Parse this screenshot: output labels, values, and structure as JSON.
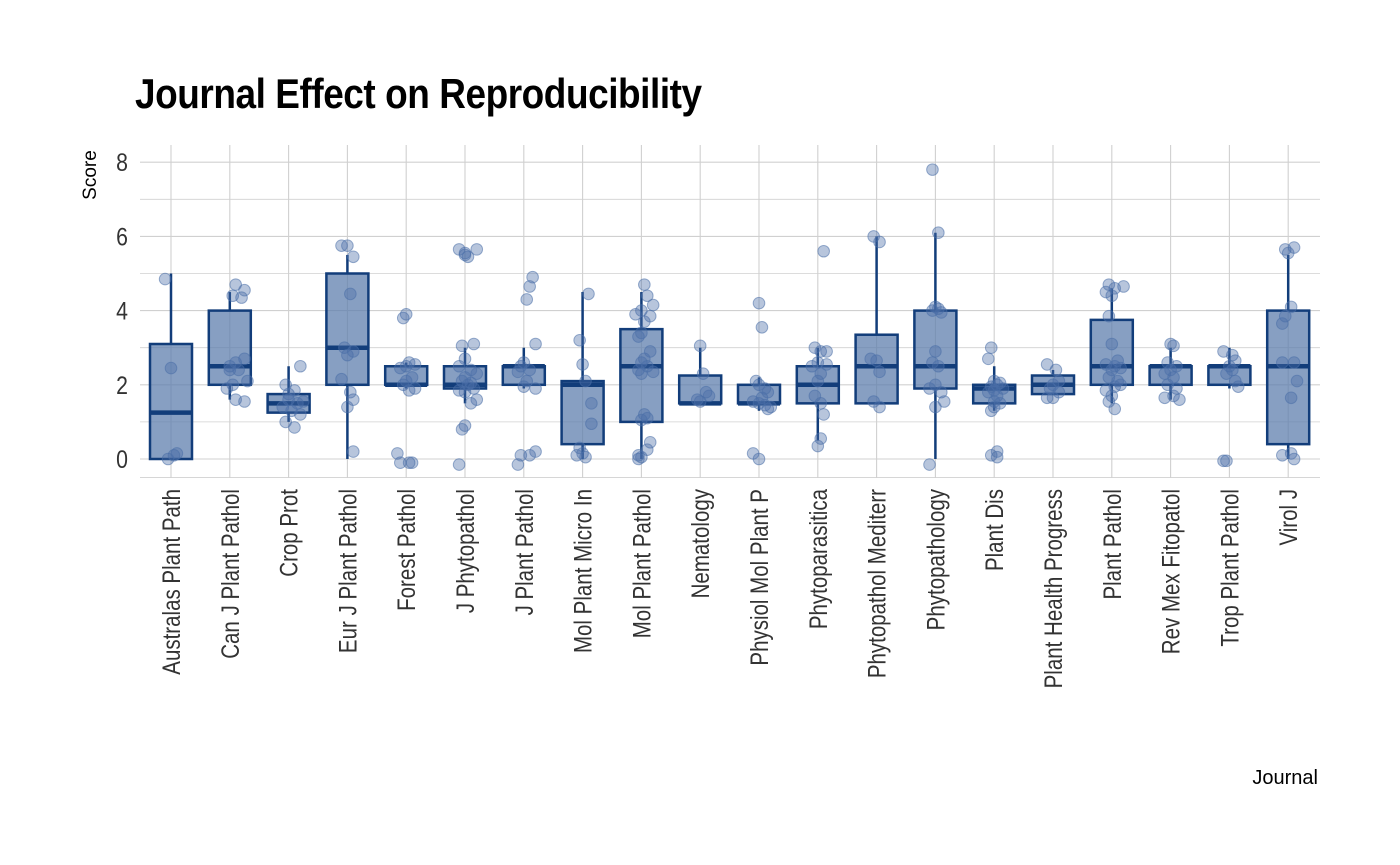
{
  "chart_data": {
    "type": "box",
    "title": "Journal Effect on Reproducibility",
    "xlabel": "Journal",
    "ylabel": "Score",
    "ylim": [
      -0.7,
      8.4
    ],
    "yticks": [
      0,
      2,
      4,
      6,
      8
    ],
    "grid": true,
    "colors": {
      "box_fill": "#5f7fae",
      "box_line": "#123d7a",
      "point": "#4a6fa8",
      "grid": "#d0d0d0"
    },
    "categories": [
      "Australas Plant Path",
      "Can J Plant Pathol",
      "Crop Prot",
      "Eur J Plant Pathol",
      "Forest Pathol",
      "J Phytopathol",
      "J Plant Pathol",
      "Mol Plant Micro In",
      "Mol Plant Pathol",
      "Nematology",
      "Physiol Mol Plant P",
      "Phytoparasitica",
      "Phytopathol Mediterr",
      "Phytopathology",
      "Plant Dis",
      "Plant Health Progress",
      "Plant Pathol",
      "Rev Mex Fitopatol",
      "Trop Plant Pathol",
      "Virol J"
    ],
    "boxes": [
      {
        "min": 0,
        "q1": 0,
        "median": 1.25,
        "q3": 3.1,
        "max": 5.0
      },
      {
        "min": 1.6,
        "q1": 2.0,
        "median": 2.5,
        "q3": 4.0,
        "max": 4.5
      },
      {
        "min": 1.0,
        "q1": 1.25,
        "median": 1.5,
        "q3": 1.75,
        "max": 2.5
      },
      {
        "min": 0,
        "q1": 2.0,
        "median": 3.0,
        "q3": 5.0,
        "max": 5.5
      },
      {
        "min": 1.9,
        "q1": 2.0,
        "median": 2.0,
        "q3": 2.5,
        "max": 2.6
      },
      {
        "min": 1.5,
        "q1": 1.9,
        "median": 2.0,
        "q3": 2.5,
        "max": 3.0
      },
      {
        "min": 1.9,
        "q1": 2.0,
        "median": 2.5,
        "q3": 2.5,
        "max": 3.0
      },
      {
        "min": 0,
        "q1": 0.4,
        "median": 2.0,
        "q3": 2.1,
        "max": 4.5
      },
      {
        "min": 0,
        "q1": 1.0,
        "median": 2.5,
        "q3": 3.5,
        "max": 4.5
      },
      {
        "min": 1.5,
        "q1": 1.5,
        "median": 1.5,
        "q3": 2.25,
        "max": 3.0
      },
      {
        "min": 1.3,
        "q1": 1.5,
        "median": 1.5,
        "q3": 2.0,
        "max": 2.2
      },
      {
        "min": 0.5,
        "q1": 1.5,
        "median": 2.0,
        "q3": 2.5,
        "max": 3.0
      },
      {
        "min": 1.5,
        "q1": 1.5,
        "median": 2.5,
        "q3": 3.35,
        "max": 6.0
      },
      {
        "min": 0,
        "q1": 1.9,
        "median": 2.5,
        "q3": 4.0,
        "max": 6.1
      },
      {
        "min": 1.3,
        "q1": 1.5,
        "median": 1.9,
        "q3": 2.0,
        "max": 2.5
      },
      {
        "min": 1.75,
        "q1": 1.75,
        "median": 2.0,
        "q3": 2.25,
        "max": 2.4
      },
      {
        "min": 1.5,
        "q1": 2.0,
        "median": 2.5,
        "q3": 3.75,
        "max": 4.6
      },
      {
        "min": 1.6,
        "q1": 2.0,
        "median": 2.5,
        "q3": 2.5,
        "max": 3.0
      },
      {
        "min": 1.9,
        "q1": 2.0,
        "median": 2.5,
        "q3": 2.5,
        "max": 3.0
      },
      {
        "min": 0,
        "q1": 0.4,
        "median": 2.5,
        "q3": 4.0,
        "max": 5.5
      }
    ],
    "points": [
      [
        [
          -0.1,
          4.85
        ],
        [
          0.0,
          2.45
        ],
        [
          0.05,
          0.1
        ],
        [
          0.1,
          0.15
        ],
        [
          -0.05,
          0.0
        ]
      ],
      [
        [
          0.1,
          4.7
        ],
        [
          0.25,
          4.55
        ],
        [
          0.05,
          4.4
        ],
        [
          0.2,
          4.35
        ],
        [
          0.0,
          2.5
        ],
        [
          0.25,
          2.7
        ],
        [
          0.1,
          2.6
        ],
        [
          0.15,
          2.4
        ],
        [
          0.05,
          2.0
        ],
        [
          -0.05,
          1.9
        ],
        [
          0.3,
          2.1
        ],
        [
          0.1,
          1.6
        ],
        [
          0.25,
          1.55
        ],
        [
          0.0,
          2.4
        ]
      ],
      [
        [
          0.2,
          2.5
        ],
        [
          -0.05,
          2.0
        ],
        [
          0.1,
          1.85
        ],
        [
          0.0,
          1.6
        ],
        [
          0.15,
          1.5
        ],
        [
          -0.1,
          1.4
        ],
        [
          0.05,
          1.3
        ],
        [
          0.2,
          1.2
        ],
        [
          -0.05,
          1.0
        ],
        [
          0.1,
          0.85
        ],
        [
          0.25,
          1.55
        ],
        [
          0.0,
          1.75
        ]
      ],
      [
        [
          -0.1,
          5.75
        ],
        [
          0.0,
          5.75
        ],
        [
          0.1,
          5.45
        ],
        [
          0.05,
          4.45
        ],
        [
          -0.05,
          3.0
        ],
        [
          0.1,
          2.9
        ],
        [
          0.0,
          2.8
        ],
        [
          -0.1,
          2.15
        ],
        [
          0.05,
          1.8
        ],
        [
          0.1,
          1.6
        ],
        [
          0.0,
          1.4
        ],
        [
          0.1,
          0.2
        ]
      ],
      [
        [
          -0.05,
          3.8
        ],
        [
          0.0,
          3.9
        ],
        [
          0.05,
          2.6
        ],
        [
          0.0,
          2.5
        ],
        [
          0.15,
          2.55
        ],
        [
          -0.1,
          2.45
        ],
        [
          0.1,
          2.2
        ],
        [
          0.0,
          2.1
        ],
        [
          -0.05,
          2.0
        ],
        [
          0.15,
          1.9
        ],
        [
          0.05,
          1.85
        ],
        [
          -0.15,
          0.15
        ],
        [
          -0.1,
          -0.1
        ],
        [
          0.05,
          -0.1
        ],
        [
          0.1,
          -0.1
        ]
      ],
      [
        [
          -0.1,
          5.65
        ],
        [
          0.0,
          5.5
        ],
        [
          0.05,
          5.45
        ],
        [
          0.2,
          5.65
        ],
        [
          0.0,
          5.55
        ],
        [
          0.15,
          3.1
        ],
        [
          -0.05,
          3.05
        ],
        [
          0.0,
          2.7
        ],
        [
          -0.1,
          2.5
        ],
        [
          0.1,
          2.4
        ],
        [
          0.2,
          2.3
        ],
        [
          0.0,
          2.2
        ],
        [
          -0.05,
          2.1
        ],
        [
          0.05,
          2.0
        ],
        [
          0.15,
          1.9
        ],
        [
          0.0,
          1.8
        ],
        [
          0.2,
          1.6
        ],
        [
          0.1,
          1.5
        ],
        [
          0.0,
          0.9
        ],
        [
          -0.05,
          0.8
        ],
        [
          -0.1,
          -0.15
        ],
        [
          -0.1,
          1.85
        ],
        [
          0.1,
          2.05
        ]
      ],
      [
        [
          0.15,
          4.9
        ],
        [
          0.1,
          4.65
        ],
        [
          0.05,
          4.3
        ],
        [
          0.2,
          3.1
        ],
        [
          0.0,
          2.6
        ],
        [
          -0.05,
          2.5
        ],
        [
          0.1,
          2.4
        ],
        [
          -0.1,
          2.35
        ],
        [
          0.05,
          2.1
        ],
        [
          0.0,
          1.95
        ],
        [
          0.2,
          1.9
        ],
        [
          0.2,
          0.2
        ],
        [
          0.1,
          0.1
        ],
        [
          -0.05,
          0.1
        ],
        [
          -0.1,
          -0.15
        ]
      ],
      [
        [
          0.1,
          4.45
        ],
        [
          -0.05,
          3.2
        ],
        [
          0.0,
          2.55
        ],
        [
          0.05,
          2.1
        ],
        [
          0.15,
          1.5
        ],
        [
          0.15,
          0.95
        ],
        [
          -0.05,
          0.3
        ],
        [
          0.0,
          0.15
        ],
        [
          -0.1,
          0.1
        ],
        [
          0.05,
          0.05
        ]
      ],
      [
        [
          0.05,
          4.7
        ],
        [
          0.1,
          4.4
        ],
        [
          0.2,
          4.15
        ],
        [
          0.0,
          4.0
        ],
        [
          -0.1,
          3.9
        ],
        [
          0.15,
          3.85
        ],
        [
          0.05,
          3.7
        ],
        [
          0.0,
          3.4
        ],
        [
          -0.05,
          3.3
        ],
        [
          0.15,
          2.9
        ],
        [
          0.05,
          2.7
        ],
        [
          0.0,
          2.6
        ],
        [
          0.1,
          2.5
        ],
        [
          -0.05,
          2.4
        ],
        [
          0.2,
          2.35
        ],
        [
          0.0,
          2.3
        ],
        [
          0.05,
          1.2
        ],
        [
          0.1,
          1.1
        ],
        [
          0.0,
          1.05
        ],
        [
          0.15,
          0.45
        ],
        [
          0.1,
          0.25
        ],
        [
          -0.05,
          0.1
        ],
        [
          0.0,
          0.05
        ],
        [
          -0.05,
          0.0
        ]
      ],
      [
        [
          0.0,
          3.05
        ],
        [
          0.05,
          2.3
        ],
        [
          0.1,
          1.8
        ],
        [
          0.15,
          1.7
        ],
        [
          -0.05,
          1.6
        ],
        [
          0.0,
          1.55
        ]
      ],
      [
        [
          0.0,
          4.2
        ],
        [
          0.05,
          3.55
        ],
        [
          -0.05,
          2.1
        ],
        [
          0.0,
          2.0
        ],
        [
          0.1,
          1.9
        ],
        [
          0.15,
          1.8
        ],
        [
          0.05,
          1.65
        ],
        [
          -0.1,
          1.55
        ],
        [
          0.1,
          1.45
        ],
        [
          0.2,
          1.4
        ],
        [
          0.15,
          1.35
        ],
        [
          0.0,
          1.5
        ],
        [
          -0.1,
          0.15
        ],
        [
          0.0,
          0.0
        ]
      ],
      [
        [
          0.1,
          5.6
        ],
        [
          -0.05,
          3.0
        ],
        [
          0.05,
          2.9
        ],
        [
          0.15,
          2.9
        ],
        [
          0.0,
          2.6
        ],
        [
          0.15,
          2.55
        ],
        [
          -0.1,
          2.5
        ],
        [
          0.05,
          2.3
        ],
        [
          0.0,
          2.1
        ],
        [
          -0.05,
          1.7
        ],
        [
          0.05,
          1.5
        ],
        [
          0.1,
          1.2
        ],
        [
          0.05,
          0.55
        ],
        [
          0.0,
          0.35
        ]
      ],
      [
        [
          -0.05,
          6.0
        ],
        [
          0.05,
          5.85
        ],
        [
          -0.1,
          2.7
        ],
        [
          0.0,
          2.65
        ],
        [
          0.05,
          2.35
        ],
        [
          -0.05,
          1.55
        ],
        [
          0.05,
          1.4
        ]
      ],
      [
        [
          -0.05,
          7.8
        ],
        [
          0.05,
          6.1
        ],
        [
          0.0,
          4.1
        ],
        [
          0.05,
          4.05
        ],
        [
          -0.05,
          4.0
        ],
        [
          0.1,
          3.95
        ],
        [
          0.0,
          2.9
        ],
        [
          -0.05,
          2.6
        ],
        [
          0.05,
          2.5
        ],
        [
          0.0,
          2.0
        ],
        [
          -0.1,
          1.9
        ],
        [
          0.1,
          1.8
        ],
        [
          0.15,
          1.55
        ],
        [
          0.0,
          1.4
        ],
        [
          -0.1,
          -0.15
        ]
      ],
      [
        [
          -0.05,
          3.0
        ],
        [
          -0.1,
          2.7
        ],
        [
          0.0,
          2.1
        ],
        [
          0.1,
          2.05
        ],
        [
          0.05,
          2.0
        ],
        [
          -0.05,
          1.95
        ],
        [
          0.15,
          1.9
        ],
        [
          0.0,
          1.85
        ],
        [
          -0.1,
          1.8
        ],
        [
          0.05,
          1.7
        ],
        [
          0.0,
          1.55
        ],
        [
          0.1,
          1.5
        ],
        [
          0.0,
          1.4
        ],
        [
          -0.05,
          1.3
        ],
        [
          0.05,
          0.2
        ],
        [
          -0.05,
          0.1
        ],
        [
          0.05,
          0.05
        ]
      ],
      [
        [
          -0.1,
          2.55
        ],
        [
          0.05,
          2.4
        ],
        [
          0.1,
          2.1
        ],
        [
          0.0,
          2.0
        ],
        [
          -0.05,
          1.9
        ],
        [
          0.1,
          1.8
        ],
        [
          -0.1,
          1.65
        ],
        [
          0.0,
          1.65
        ]
      ],
      [
        [
          -0.05,
          4.7
        ],
        [
          0.05,
          4.6
        ],
        [
          0.2,
          4.65
        ],
        [
          -0.1,
          4.5
        ],
        [
          0.0,
          4.4
        ],
        [
          -0.05,
          3.85
        ],
        [
          0.0,
          3.1
        ],
        [
          0.1,
          2.65
        ],
        [
          -0.1,
          2.55
        ],
        [
          0.05,
          2.5
        ],
        [
          0.15,
          2.45
        ],
        [
          0.0,
          2.4
        ],
        [
          -0.05,
          2.2
        ],
        [
          0.1,
          2.1
        ],
        [
          0.15,
          2.0
        ],
        [
          0.05,
          1.95
        ],
        [
          -0.1,
          1.85
        ],
        [
          0.0,
          1.7
        ],
        [
          -0.05,
          1.55
        ],
        [
          0.05,
          1.35
        ]
      ],
      [
        [
          0.0,
          3.1
        ],
        [
          0.05,
          3.05
        ],
        [
          -0.05,
          2.6
        ],
        [
          0.1,
          2.5
        ],
        [
          0.0,
          2.4
        ],
        [
          -0.1,
          2.3
        ],
        [
          0.05,
          2.2
        ],
        [
          -0.05,
          2.0
        ],
        [
          0.1,
          1.9
        ],
        [
          0.05,
          1.7
        ],
        [
          -0.1,
          1.65
        ],
        [
          0.15,
          1.6
        ]
      ],
      [
        [
          -0.1,
          2.9
        ],
        [
          0.05,
          2.8
        ],
        [
          0.1,
          2.65
        ],
        [
          0.0,
          2.5
        ],
        [
          0.05,
          2.4
        ],
        [
          -0.05,
          2.3
        ],
        [
          0.1,
          2.1
        ],
        [
          0.15,
          1.95
        ],
        [
          -0.1,
          -0.05
        ],
        [
          -0.05,
          -0.05
        ]
      ],
      [
        [
          -0.05,
          5.65
        ],
        [
          0.0,
          5.55
        ],
        [
          0.1,
          5.7
        ],
        [
          -0.1,
          3.65
        ],
        [
          -0.05,
          3.85
        ],
        [
          0.05,
          4.1
        ],
        [
          -0.1,
          2.6
        ],
        [
          0.1,
          2.6
        ],
        [
          0.15,
          2.1
        ],
        [
          0.05,
          1.65
        ],
        [
          -0.1,
          0.1
        ],
        [
          0.05,
          0.15
        ],
        [
          0.1,
          0.0
        ]
      ]
    ]
  }
}
